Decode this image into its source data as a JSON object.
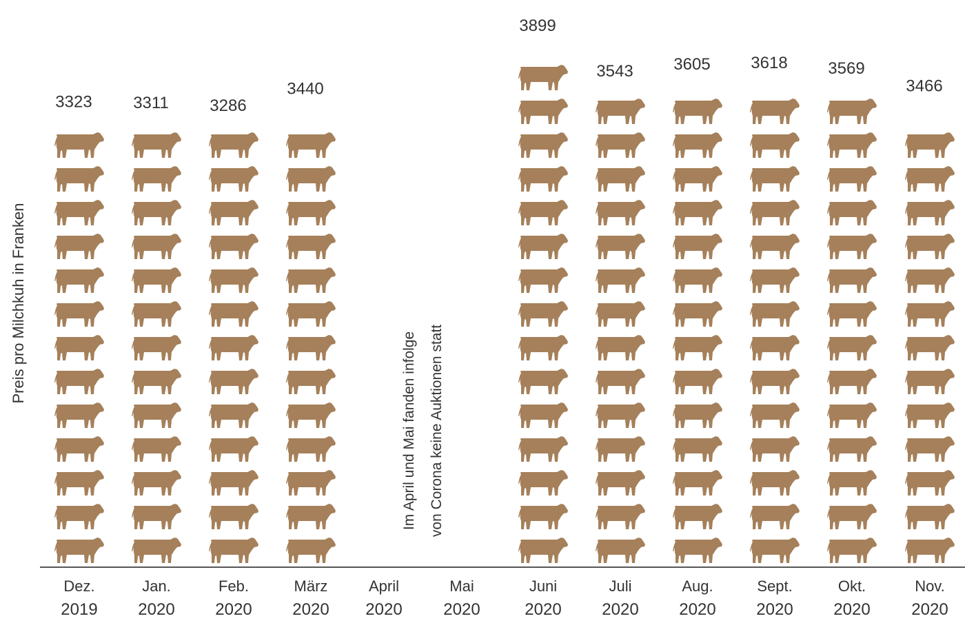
{
  "chart_data": {
    "type": "bar",
    "style": "pictogram",
    "icon": "cow-icon",
    "ylabel": "Preis pro Milchkuh in Franken",
    "categories": [
      [
        "Dez.",
        "2019"
      ],
      [
        "Jan.",
        "2020"
      ],
      [
        "Feb.",
        "2020"
      ],
      [
        "März",
        "2020"
      ],
      [
        "April",
        "2020"
      ],
      [
        "Mai",
        "2020"
      ],
      [
        "Juni",
        "2020"
      ],
      [
        "Juli",
        "2020"
      ],
      [
        "Aug.",
        "2020"
      ],
      [
        "Sept.",
        "2020"
      ],
      [
        "Okt.",
        "2020"
      ],
      [
        "Nov.",
        "2020"
      ]
    ],
    "values": [
      3323,
      3311,
      3286,
      3440,
      null,
      null,
      3899,
      3543,
      3605,
      3618,
      3569,
      3466
    ],
    "annotation": [
      "Im April und Mai fanden infolge",
      "von Corona keine Auktionen statt"
    ],
    "colors": {
      "icon": "#a5805a",
      "axis": "#555555"
    }
  }
}
